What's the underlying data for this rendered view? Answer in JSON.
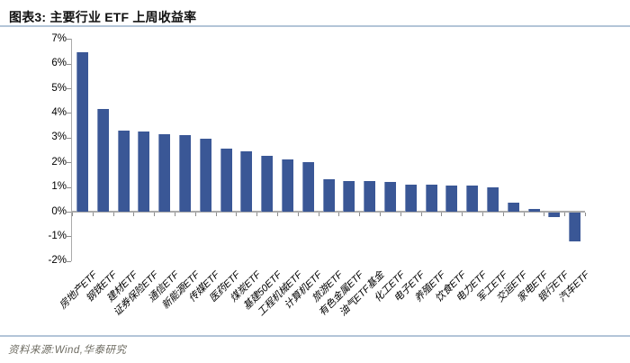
{
  "header": {
    "title": "图表3:  主要行业 ETF 上周收益率"
  },
  "footer": {
    "source": "资料来源:Wind,华泰研究"
  },
  "colors": {
    "bar": "#3A5796",
    "separator": "#B3C5D8",
    "axis_line": "#ABABAB",
    "tick": "#8C8C8C",
    "title_text": "#111111",
    "source_text": "#6E6C62"
  },
  "chart_data": {
    "type": "bar",
    "title": "主要行业 ETF 上周收益率",
    "categories": [
      "房地产ETF",
      "钢铁ETF",
      "建材ETF",
      "证券保险ETF",
      "通信ETF",
      "新能源ETF",
      "传媒ETF",
      "医药ETF",
      "煤炭ETF",
      "基建50ETF",
      "工程机械ETF",
      "计算机ETF",
      "旅游ETF",
      "有色金属ETF",
      "油气ETF基金",
      "化工ETF",
      "电子ETF",
      "养殖ETF",
      "饮食ETF",
      "电力ETF",
      "军工ETF",
      "交运ETF",
      "家电ETF",
      "银行ETF",
      "汽车ETF"
    ],
    "values": [
      6.45,
      4.15,
      3.3,
      3.25,
      3.15,
      3.1,
      2.95,
      2.55,
      2.45,
      2.25,
      2.1,
      2.0,
      1.3,
      1.25,
      1.25,
      1.2,
      1.1,
      1.1,
      1.05,
      1.05,
      1.0,
      0.35,
      0.1,
      -0.2,
      -1.15
    ],
    "xlabel": "",
    "ylabel": "",
    "ylim": [
      -2,
      7
    ],
    "ytick_step": 1,
    "ytick_labels": [
      "7%",
      "6%",
      "5%",
      "4%",
      "3%",
      "2%",
      "1%",
      "0%",
      "-1%",
      "-2%"
    ],
    "ytick_values": [
      7,
      6,
      5,
      4,
      3,
      2,
      1,
      0,
      -1,
      -2
    ],
    "grid": false,
    "legend": null,
    "bar_color": "#3A5796"
  }
}
